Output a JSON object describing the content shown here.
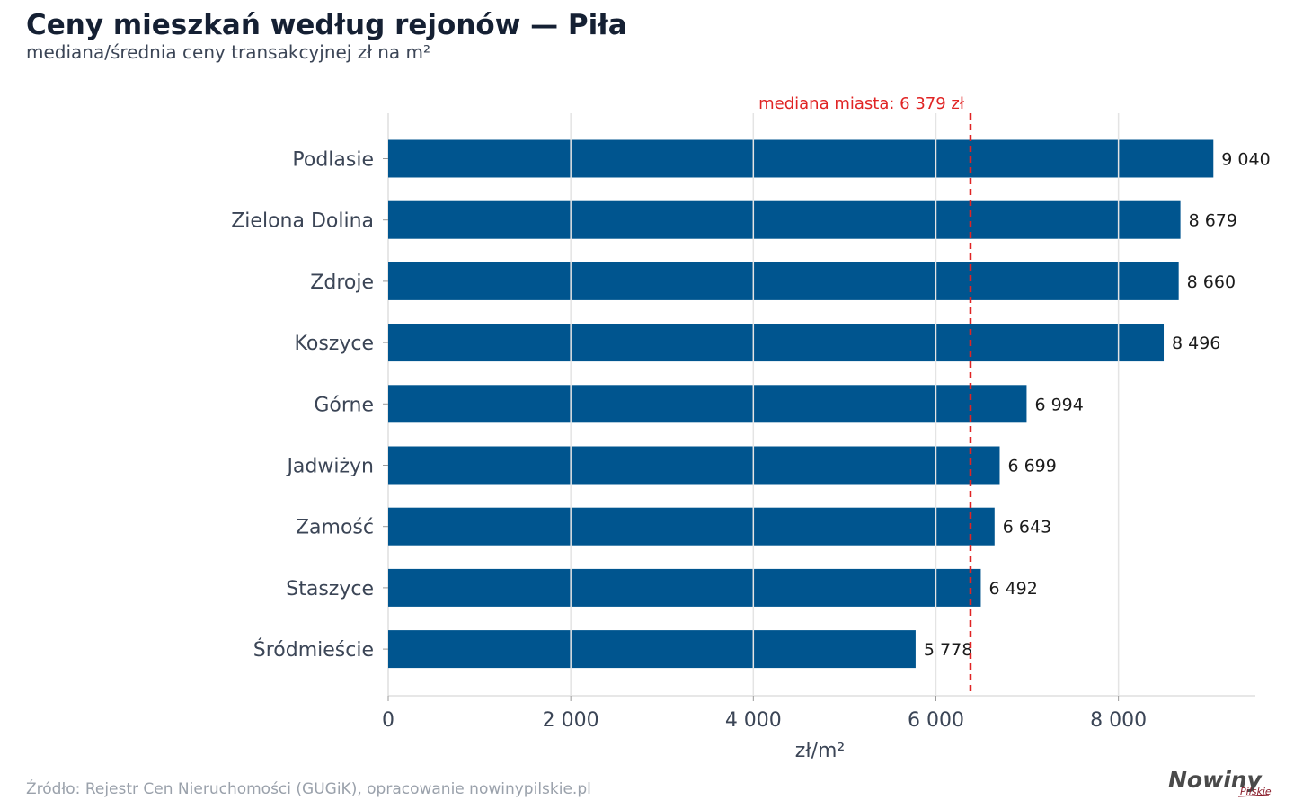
{
  "title": "Ceny mieszkań według rejonów — Piła",
  "subtitle": "mediana/średnia ceny transakcyjnej zł na m²",
  "source": "Źródło: Rejestr Cen Nieruchomości (GUGiK), opracowanie nowinypilskie.pl",
  "logo": {
    "main": "Nowiny",
    "sub": "Pilskie"
  },
  "colors": {
    "bar": "#00558f",
    "median": "#e02424",
    "grid": "#e4e4e4",
    "axis": "#cfcfcf",
    "tick": "#3b4556"
  },
  "chart_data": {
    "type": "bar",
    "orientation": "horizontal",
    "categories": [
      "Podlasie",
      "Zielona Dolina",
      "Zdroje",
      "Koszyce",
      "Górne",
      "Jadwiżyn",
      "Zamość",
      "Staszyce",
      "Śródmieście"
    ],
    "values": [
      9040,
      8679,
      8660,
      8496,
      6994,
      6699,
      6643,
      6492,
      5778
    ],
    "value_labels": [
      "9 040",
      "8 679",
      "8 660",
      "8 496",
      "6 994",
      "6 699",
      "6 643",
      "6 492",
      "5 778"
    ],
    "xlabel": "zł/m²",
    "xlim": [
      0,
      9500
    ],
    "xticks": [
      0,
      2000,
      4000,
      6000,
      8000
    ],
    "xtick_labels": [
      "0",
      "2 000",
      "4 000",
      "6 000",
      "8 000"
    ],
    "grid": true,
    "reference_line": {
      "value": 6379,
      "label": "mediana miasta: 6 379 zł"
    }
  }
}
